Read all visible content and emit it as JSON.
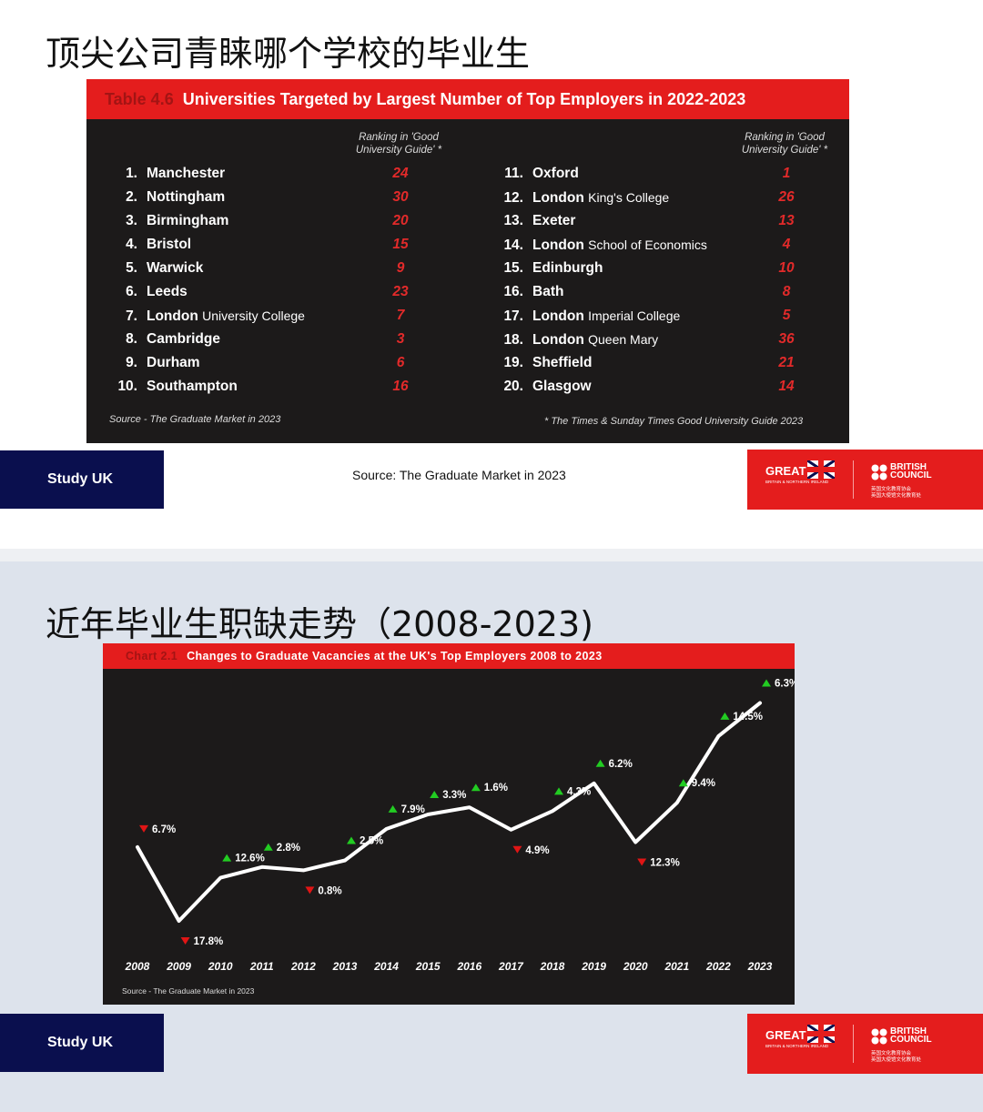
{
  "slide1": {
    "title": "顶尖公司青睐哪个学校的毕业生",
    "table": {
      "tag": "Table 4.6",
      "heading": "Universities Targeted by Largest Number of Top Employers in 2022-2023",
      "rank_header_line1": "Ranking in 'Good",
      "rank_header_line2": "University Guide' *",
      "left": [
        {
          "num": "1.",
          "name": "Manchester",
          "suffix": "",
          "rank": "24"
        },
        {
          "num": "2.",
          "name": "Nottingham",
          "suffix": "",
          "rank": "30"
        },
        {
          "num": "3.",
          "name": "Birmingham",
          "suffix": "",
          "rank": "20"
        },
        {
          "num": "4.",
          "name": "Bristol",
          "suffix": "",
          "rank": "15"
        },
        {
          "num": "5.",
          "name": "Warwick",
          "suffix": "",
          "rank": "9"
        },
        {
          "num": "6.",
          "name": "Leeds",
          "suffix": "",
          "rank": "23"
        },
        {
          "num": "7.",
          "name": "London",
          "suffix": "University College",
          "rank": "7"
        },
        {
          "num": "8.",
          "name": "Cambridge",
          "suffix": "",
          "rank": "3"
        },
        {
          "num": "9.",
          "name": "Durham",
          "suffix": "",
          "rank": "6"
        },
        {
          "num": "10.",
          "name": "Southampton",
          "suffix": "",
          "rank": "16"
        }
      ],
      "right": [
        {
          "num": "11.",
          "name": "Oxford",
          "suffix": "",
          "rank": "1"
        },
        {
          "num": "12.",
          "name": "London",
          "suffix": "King's College",
          "rank": "26"
        },
        {
          "num": "13.",
          "name": "Exeter",
          "suffix": "",
          "rank": "13"
        },
        {
          "num": "14.",
          "name": "London",
          "suffix": "School of Economics",
          "rank": "4"
        },
        {
          "num": "15.",
          "name": "Edinburgh",
          "suffix": "",
          "rank": "10"
        },
        {
          "num": "16.",
          "name": "Bath",
          "suffix": "",
          "rank": "8"
        },
        {
          "num": "17.",
          "name": "London",
          "suffix": "Imperial College",
          "rank": "5"
        },
        {
          "num": "18.",
          "name": "London",
          "suffix": "Queen Mary",
          "rank": "36"
        },
        {
          "num": "19.",
          "name": "Sheffield",
          "suffix": "",
          "rank": "21"
        },
        {
          "num": "20.",
          "name": "Glasgow",
          "suffix": "",
          "rank": "14"
        }
      ],
      "source": "Source - The Graduate Market in 2023",
      "footnote": "* The Times & Sunday Times Good University Guide 2023"
    },
    "caption": "Source: The Graduate Market in 2023"
  },
  "slide2": {
    "title": "近年毕业生职缺走势（2008-2023)",
    "chart_tag": "Chart 2.1",
    "chart_heading": "Changes to Graduate Vacancies at the UK's Top Employers 2008 to 2023",
    "chart_source": "Source - The Graduate Market in 2023"
  },
  "branding": {
    "study_uk": "Study UK",
    "great": "GREAT",
    "great_sub": "BRITAIN & NORTHERN IRELAND",
    "bc_line1": "BRITISH",
    "bc_line2": "COUNCIL",
    "bc_cn1": "英国文化教育协会",
    "bc_cn2": "英国大使馆文化教育处"
  },
  "colors": {
    "accent_red": "#e41d1d",
    "navy": "#0a0f4e",
    "panel_dark": "#1c1a1a",
    "up_green": "#22cc22",
    "down_red": "#e01515"
  },
  "chart_data": {
    "type": "line",
    "title": "Changes to Graduate Vacancies at the UK's Top Employers 2008 to 2023",
    "x": [
      "2008",
      "2009",
      "2010",
      "2011",
      "2012",
      "2013",
      "2014",
      "2015",
      "2016",
      "2017",
      "2018",
      "2019",
      "2020",
      "2021",
      "2022",
      "2023"
    ],
    "series": [
      {
        "values": [
          100,
          82.2,
          92.6,
          95.2,
          94.4,
          96.8,
          104.4,
          107.9,
          109.6,
          104.2,
          108.7,
          115.4,
          101.2,
          110.7,
          126.8,
          134.8
        ]
      }
    ],
    "annotations": [
      {
        "year": "2008",
        "label": "6.7%",
        "direction": "down"
      },
      {
        "year": "2009",
        "label": "17.8%",
        "direction": "down"
      },
      {
        "year": "2010",
        "label": "12.6%",
        "direction": "up"
      },
      {
        "year": "2011",
        "label": "2.8%",
        "direction": "up"
      },
      {
        "year": "2012",
        "label": "0.8%",
        "direction": "down"
      },
      {
        "year": "2013",
        "label": "2.5%",
        "direction": "up"
      },
      {
        "year": "2014",
        "label": "7.9%",
        "direction": "up"
      },
      {
        "year": "2015",
        "label": "3.3%",
        "direction": "up"
      },
      {
        "year": "2016",
        "label": "1.6%",
        "direction": "up"
      },
      {
        "year": "2017",
        "label": "4.9%",
        "direction": "down"
      },
      {
        "year": "2018",
        "label": "4.3%",
        "direction": "up"
      },
      {
        "year": "2019",
        "label": "6.2%",
        "direction": "up"
      },
      {
        "year": "2020",
        "label": "12.3%",
        "direction": "down"
      },
      {
        "year": "2021",
        "label": "9.4%",
        "direction": "up"
      },
      {
        "year": "2022",
        "label": "14.5%",
        "direction": "up"
      },
      {
        "year": "2023",
        "label": "6.3%",
        "direction": "up"
      }
    ],
    "xlabel": "",
    "ylabel": "",
    "y_axis_shown": false,
    "grid": false
  }
}
